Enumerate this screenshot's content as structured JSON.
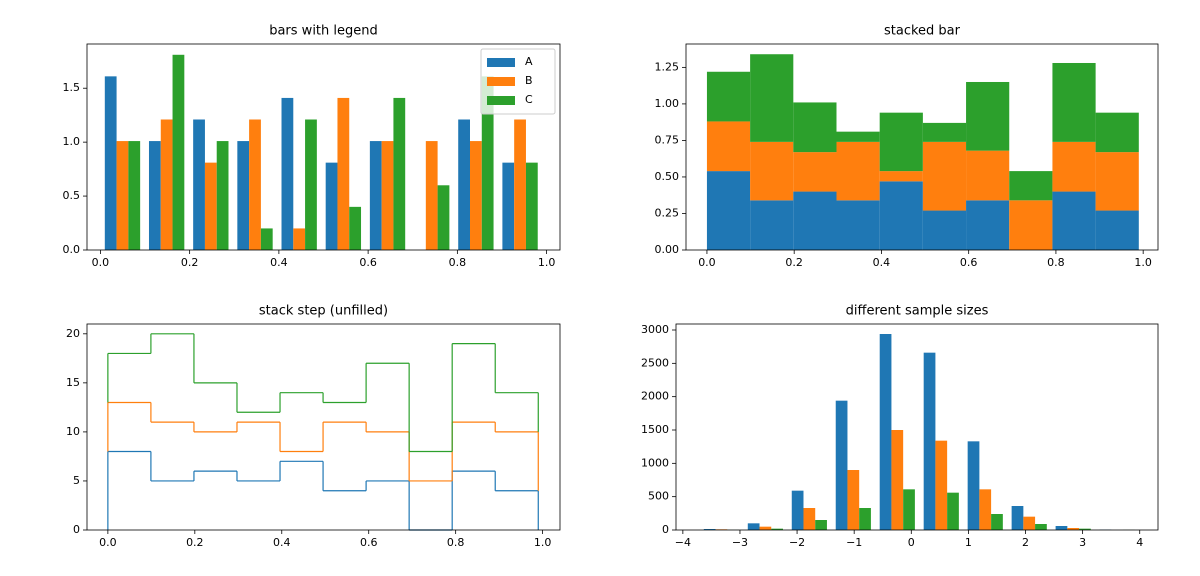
{
  "chart_data": [
    {
      "type": "histogram",
      "histtype": "bar",
      "stacked": false,
      "title": "bars with legend",
      "legend": "upper right",
      "bins": [
        0,
        0.099,
        0.198,
        0.297,
        0.396,
        0.495,
        0.594,
        0.693,
        0.792,
        0.891,
        0.99
      ],
      "series": [
        {
          "name": "A",
          "color": "#1f77b4",
          "values": [
            1.61,
            1.01,
            1.21,
            1.01,
            1.41,
            0.81,
            1.01,
            0,
            1.21,
            0.81
          ]
        },
        {
          "name": "B",
          "color": "#ff7f0e",
          "values": [
            1.01,
            1.21,
            0.81,
            1.21,
            0.2,
            1.41,
            1.01,
            1.01,
            1.01,
            1.21
          ]
        },
        {
          "name": "C",
          "color": "#2ca02c",
          "values": [
            1.01,
            1.81,
            1.01,
            0.2,
            1.21,
            0.4,
            1.41,
            0.6,
            1.61,
            0.81
          ]
        }
      ],
      "xlim": [
        -0.03,
        1.03
      ],
      "xticks": [
        {
          "value": 0,
          "label": "0.0"
        },
        0.2,
        0.4,
        0.6,
        0.8,
        {
          "value": 1,
          "label": "1.0"
        }
      ],
      "ylim": [
        0,
        1.91
      ],
      "yticks": [
        {
          "value": 0,
          "label": "0.0"
        },
        0.5,
        {
          "value": 1,
          "label": "1.0"
        },
        1.5
      ]
    },
    {
      "type": "histogram",
      "histtype": "bar",
      "stacked": true,
      "title": "stacked bar",
      "bins": [
        0,
        0.099,
        0.198,
        0.297,
        0.396,
        0.495,
        0.594,
        0.693,
        0.792,
        0.891,
        0.99
      ],
      "series": [
        {
          "name": "A",
          "color": "#1f77b4",
          "values": [
            0.54,
            0.34,
            0.4,
            0.34,
            0.47,
            0.27,
            0.34,
            0,
            0.4,
            0.27
          ]
        },
        {
          "name": "B",
          "color": "#ff7f0e",
          "values": [
            0.34,
            0.4,
            0.27,
            0.4,
            0.07,
            0.47,
            0.34,
            0.34,
            0.34,
            0.4
          ]
        },
        {
          "name": "C",
          "color": "#2ca02c",
          "values": [
            0.34,
            0.6,
            0.34,
            0.07,
            0.4,
            0.13,
            0.47,
            0.2,
            0.54,
            0.27
          ]
        }
      ],
      "xlim": [
        -0.048,
        1.034
      ],
      "xticks": [
        {
          "value": 0,
          "label": "0.0"
        },
        0.2,
        0.4,
        0.6,
        0.8,
        {
          "value": 1,
          "label": "1.0"
        }
      ],
      "ylim": [
        0,
        1.41
      ],
      "yticks": [
        {
          "value": 0,
          "label": "0.00"
        },
        0.25,
        {
          "value": 0.5,
          "label": "0.50"
        },
        0.75,
        {
          "value": 1,
          "label": "1.00"
        },
        1.25
      ]
    },
    {
      "type": "histogram",
      "histtype": "step",
      "stacked": true,
      "title": "stack step (unfilled)",
      "bins": [
        0,
        0.099,
        0.198,
        0.297,
        0.396,
        0.495,
        0.594,
        0.693,
        0.792,
        0.891,
        0.99
      ],
      "series": [
        {
          "name": "A",
          "color": "#1f77b4",
          "values": [
            8,
            5,
            6,
            5,
            7,
            4,
            5,
            0,
            6,
            4
          ]
        },
        {
          "name": "B",
          "color": "#ff7f0e",
          "values": [
            5,
            6,
            4,
            6,
            1,
            7,
            5,
            5,
            5,
            6
          ]
        },
        {
          "name": "C",
          "color": "#2ca02c",
          "values": [
            5,
            9,
            5,
            1,
            6,
            2,
            7,
            3,
            8,
            4
          ]
        }
      ],
      "xlim": [
        -0.048,
        1.04
      ],
      "xticks": [
        {
          "value": 0,
          "label": "0.0"
        },
        0.2,
        0.4,
        0.6,
        0.8,
        {
          "value": 1,
          "label": "1.0"
        }
      ],
      "ylim": [
        0,
        21
      ],
      "yticks": [
        0,
        5,
        10,
        15,
        20
      ]
    },
    {
      "type": "histogram",
      "histtype": "bar",
      "stacked": false,
      "title": "different sample sizes",
      "bins": [
        -3.71,
        -2.94,
        -2.17,
        -1.4,
        -0.63,
        0.14,
        0.91,
        1.68,
        2.45,
        3.22,
        3.99
      ],
      "series": [
        {
          "name": "A",
          "color": "#1f77b4",
          "values": [
            15,
            100,
            590,
            1940,
            2940,
            2660,
            1330,
            360,
            60,
            5
          ]
        },
        {
          "name": "B",
          "color": "#ff7f0e",
          "values": [
            10,
            50,
            330,
            900,
            1500,
            1340,
            610,
            200,
            30,
            0
          ]
        },
        {
          "name": "C",
          "color": "#2ca02c",
          "values": [
            2,
            20,
            150,
            330,
            610,
            560,
            240,
            90,
            20,
            2
          ]
        }
      ],
      "xlim": [
        -4.12,
        4.32
      ],
      "xticks": [
        {
          "value": -4,
          "label": "−4"
        },
        {
          "value": -3,
          "label": "−3"
        },
        {
          "value": -2,
          "label": "−2"
        },
        {
          "value": -1,
          "label": "−1"
        },
        0,
        1,
        2,
        3,
        4
      ],
      "ylim": [
        0,
        3090
      ],
      "yticks": [
        0,
        500,
        1000,
        1500,
        2000,
        2500,
        3000
      ]
    }
  ]
}
